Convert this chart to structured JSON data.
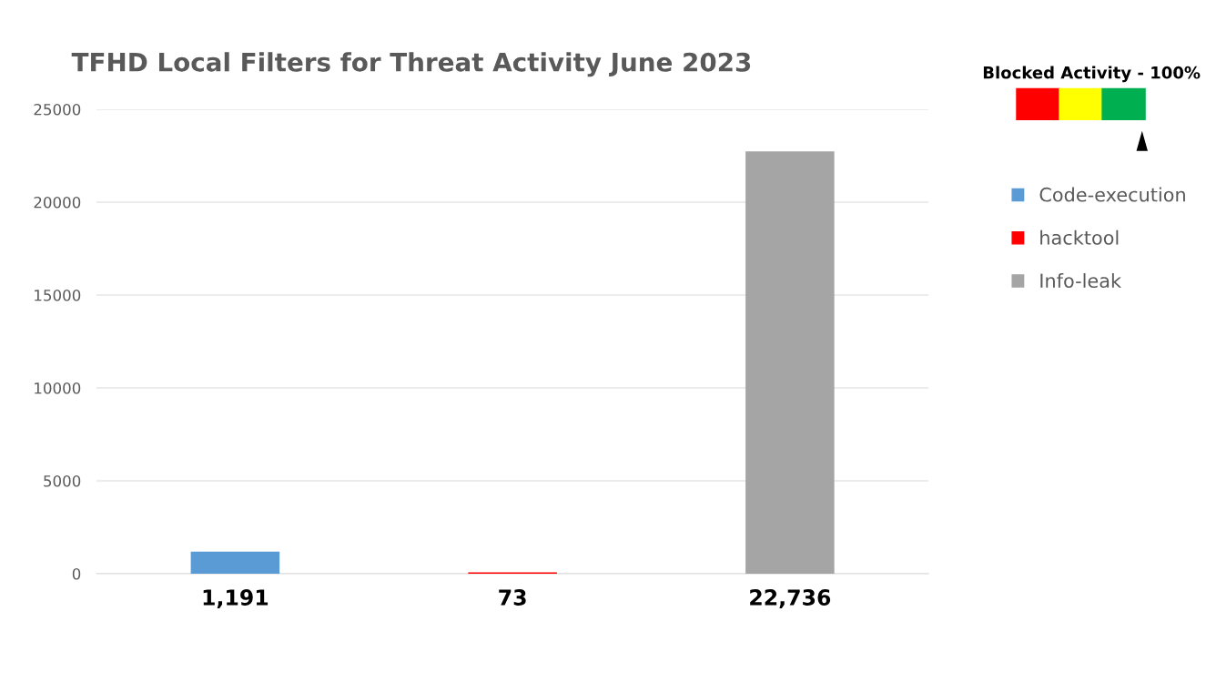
{
  "chart_data": {
    "type": "bar",
    "title": "TFHD Local Filters for Threat Activity June 2023",
    "categories": [
      "1,191",
      "73",
      "22,736"
    ],
    "series": [
      {
        "name": "Code-execution",
        "color": "#5b9bd5",
        "values": [
          1191,
          null,
          null
        ]
      },
      {
        "name": "hacktool",
        "color": "#ff0000",
        "values": [
          null,
          73,
          null
        ]
      },
      {
        "name": "Info-leak",
        "color": "#a5a5a5",
        "values": [
          null,
          null,
          22736
        ]
      }
    ],
    "ylim": [
      0,
      25000
    ],
    "yticks": [
      0,
      5000,
      10000,
      15000,
      20000,
      25000
    ],
    "grid": "y",
    "legend": "right",
    "annotations": [
      "Blocked Activity - 100%"
    ]
  }
}
